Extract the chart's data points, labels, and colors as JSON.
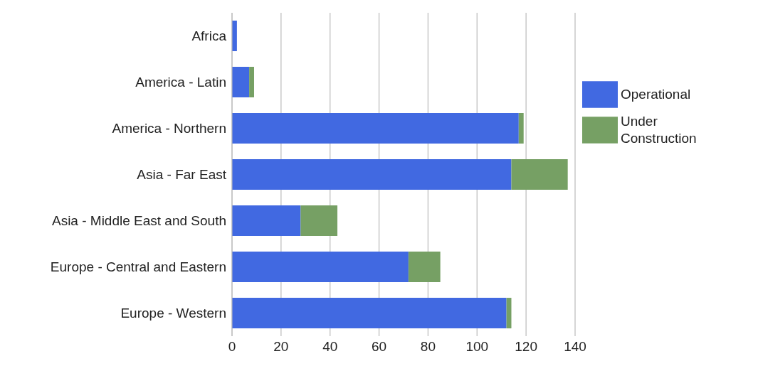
{
  "chart_data": {
    "type": "bar",
    "orientation": "horizontal",
    "stacked": true,
    "categories": [
      "Africa",
      "America - Latin",
      "America - Northern",
      "Asia - Far East",
      "Asia - Middle East and South",
      "Europe - Central and Eastern",
      "Europe - Western"
    ],
    "series": [
      {
        "name": "Operational",
        "color": "#4169e1",
        "values": [
          2,
          7,
          117,
          114,
          28,
          72,
          112
        ]
      },
      {
        "name": "Under Construction",
        "color": "#76a064",
        "values": [
          0,
          2,
          2,
          23,
          15,
          13,
          2
        ]
      }
    ],
    "xlim": [
      0,
      140
    ],
    "xticks": [
      0,
      20,
      40,
      60,
      80,
      100,
      120,
      140
    ],
    "grid": "x",
    "legend": "right"
  }
}
